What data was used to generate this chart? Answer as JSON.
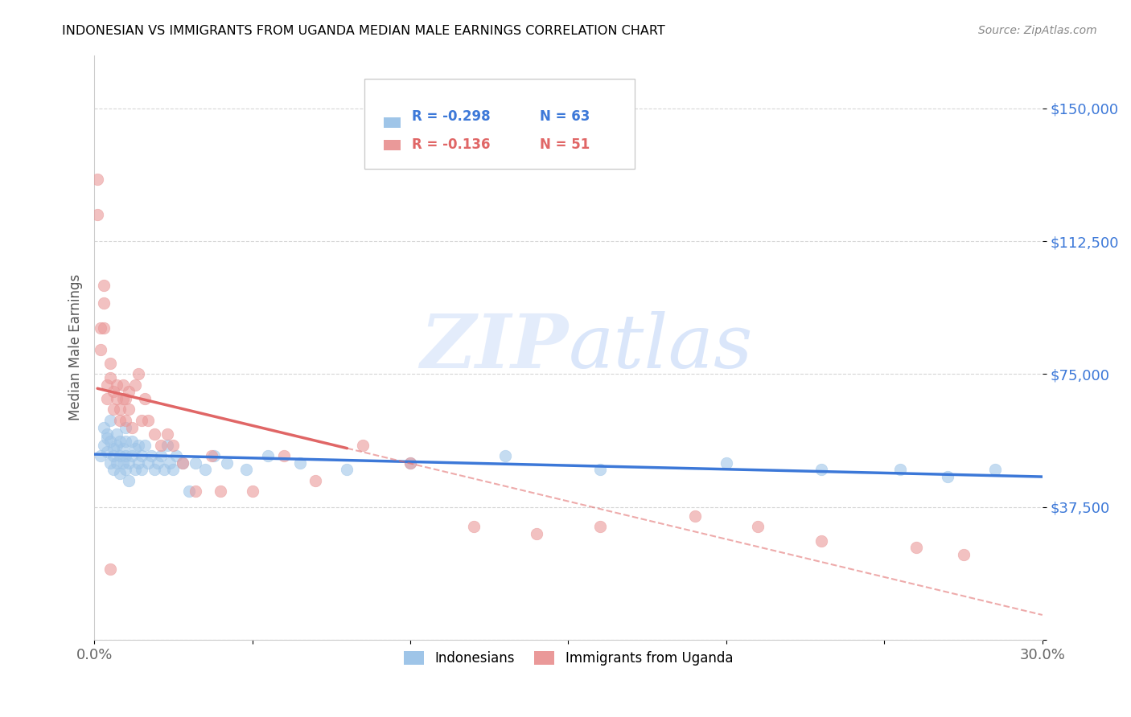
{
  "title": "INDONESIAN VS IMMIGRANTS FROM UGANDA MEDIAN MALE EARNINGS CORRELATION CHART",
  "source": "Source: ZipAtlas.com",
  "ylabel": "Median Male Earnings",
  "xlim": [
    0.0,
    0.3
  ],
  "ylim": [
    0,
    165000
  ],
  "yticks": [
    0,
    37500,
    75000,
    112500,
    150000
  ],
  "ytick_labels": [
    "",
    "$37,500",
    "$75,000",
    "$112,500",
    "$150,000"
  ],
  "xticks": [
    0.0,
    0.05,
    0.1,
    0.15,
    0.2,
    0.25,
    0.3
  ],
  "xtick_labels": [
    "0.0%",
    "",
    "",
    "",
    "",
    "",
    "30.0%"
  ],
  "watermark_zip": "ZIP",
  "watermark_atlas": "atlas",
  "legend_r1": "R = -0.298",
  "legend_n1": "N = 63",
  "legend_r2": "R = -0.136",
  "legend_n2": "N = 51",
  "blue_color": "#9fc5e8",
  "pink_color": "#ea9999",
  "blue_line_color": "#3c78d8",
  "pink_line_color": "#e06666",
  "title_color": "#000000",
  "ytick_color": "#3c78d8",
  "xtick_color": "#666666",
  "grid_color": "#cccccc",
  "indonesians_x": [
    0.002,
    0.003,
    0.003,
    0.004,
    0.004,
    0.004,
    0.005,
    0.005,
    0.005,
    0.006,
    0.006,
    0.006,
    0.007,
    0.007,
    0.007,
    0.008,
    0.008,
    0.008,
    0.009,
    0.009,
    0.01,
    0.01,
    0.01,
    0.01,
    0.011,
    0.011,
    0.012,
    0.012,
    0.013,
    0.013,
    0.014,
    0.014,
    0.015,
    0.015,
    0.016,
    0.017,
    0.018,
    0.019,
    0.02,
    0.021,
    0.022,
    0.023,
    0.024,
    0.025,
    0.026,
    0.028,
    0.03,
    0.032,
    0.035,
    0.038,
    0.042,
    0.048,
    0.055,
    0.065,
    0.08,
    0.1,
    0.13,
    0.16,
    0.2,
    0.23,
    0.255,
    0.27,
    0.285
  ],
  "indonesians_y": [
    52000,
    60000,
    55000,
    57000,
    53000,
    58000,
    62000,
    50000,
    56000,
    54000,
    48000,
    52000,
    55000,
    50000,
    58000,
    47000,
    52000,
    56000,
    50000,
    54000,
    48000,
    52000,
    56000,
    60000,
    50000,
    45000,
    52000,
    56000,
    48000,
    54000,
    50000,
    55000,
    52000,
    48000,
    55000,
    50000,
    52000,
    48000,
    50000,
    52000,
    48000,
    55000,
    50000,
    48000,
    52000,
    50000,
    42000,
    50000,
    48000,
    52000,
    50000,
    48000,
    52000,
    50000,
    48000,
    50000,
    52000,
    48000,
    50000,
    48000,
    48000,
    46000,
    48000
  ],
  "uganda_x": [
    0.001,
    0.001,
    0.002,
    0.002,
    0.003,
    0.003,
    0.003,
    0.004,
    0.004,
    0.005,
    0.005,
    0.006,
    0.006,
    0.007,
    0.007,
    0.008,
    0.008,
    0.009,
    0.009,
    0.01,
    0.01,
    0.011,
    0.011,
    0.012,
    0.013,
    0.014,
    0.015,
    0.016,
    0.017,
    0.019,
    0.021,
    0.023,
    0.025,
    0.028,
    0.032,
    0.037,
    0.04,
    0.05,
    0.06,
    0.07,
    0.085,
    0.1,
    0.12,
    0.14,
    0.16,
    0.19,
    0.21,
    0.23,
    0.26,
    0.275,
    0.005
  ],
  "uganda_y": [
    130000,
    120000,
    88000,
    82000,
    100000,
    95000,
    88000,
    72000,
    68000,
    78000,
    74000,
    70000,
    65000,
    72000,
    68000,
    65000,
    62000,
    68000,
    72000,
    62000,
    68000,
    70000,
    65000,
    60000,
    72000,
    75000,
    62000,
    68000,
    62000,
    58000,
    55000,
    58000,
    55000,
    50000,
    42000,
    52000,
    42000,
    42000,
    52000,
    45000,
    55000,
    50000,
    32000,
    30000,
    32000,
    35000,
    32000,
    28000,
    26000,
    24000,
    20000
  ]
}
